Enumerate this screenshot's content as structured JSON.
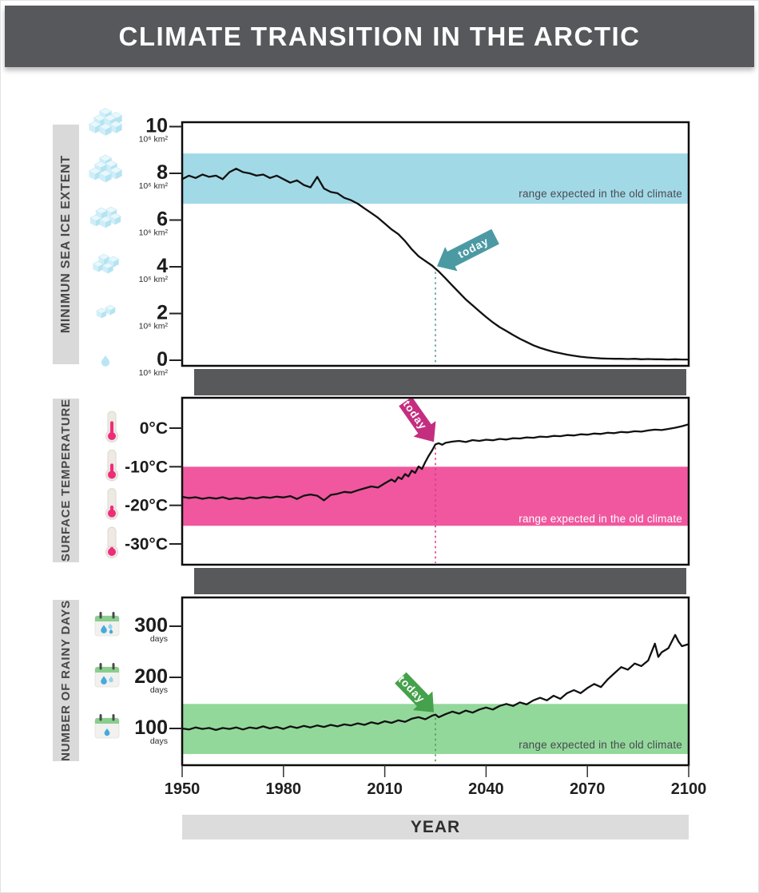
{
  "title": "CLIMATE TRANSITION IN THE ARCTIC",
  "x_axis": {
    "label": "YEAR",
    "ticks": [
      1950,
      1980,
      2010,
      2040,
      2070,
      2100
    ],
    "range": [
      1950,
      2100
    ]
  },
  "today": {
    "label": "today",
    "year": 2025
  },
  "chart_data": [
    {
      "type": "line",
      "title": "MINIMUN SEA ICE EXTENT",
      "icon": "ice-cubes",
      "y_ticks": [
        10,
        8,
        6,
        4,
        2,
        0
      ],
      "y_tick_labels": [
        "10",
        "8",
        "6",
        "4",
        "2",
        "0"
      ],
      "y_tick_unit": "10⁶ km²",
      "ylim": [
        -0.25,
        10.2
      ],
      "grid": false,
      "legend": "none",
      "band": {
        "from": 6.7,
        "to": 8.85,
        "color": "#a2d9e7",
        "label": "range expected in the old climate"
      },
      "line_color": "#111111",
      "today_value": 3.92,
      "arrow": {
        "color": "#4b9aa3",
        "dash_color": "#4b9aa3",
        "direction": "down-left",
        "angle": -27,
        "length": 62
      },
      "series": [
        [
          1950,
          7.75
        ],
        [
          1952,
          7.9
        ],
        [
          1954,
          7.8
        ],
        [
          1956,
          7.95
        ],
        [
          1958,
          7.85
        ],
        [
          1960,
          7.9
        ],
        [
          1962,
          7.75
        ],
        [
          1964,
          8.05
        ],
        [
          1966,
          8.2
        ],
        [
          1968,
          8.05
        ],
        [
          1970,
          8.0
        ],
        [
          1972,
          7.9
        ],
        [
          1974,
          7.95
        ],
        [
          1976,
          7.8
        ],
        [
          1978,
          7.9
        ],
        [
          1980,
          7.75
        ],
        [
          1982,
          7.6
        ],
        [
          1984,
          7.7
        ],
        [
          1986,
          7.5
        ],
        [
          1988,
          7.4
        ],
        [
          1990,
          7.85
        ],
        [
          1992,
          7.35
        ],
        [
          1994,
          7.2
        ],
        [
          1996,
          7.15
        ],
        [
          1998,
          6.95
        ],
        [
          2000,
          6.85
        ],
        [
          2002,
          6.7
        ],
        [
          2004,
          6.5
        ],
        [
          2006,
          6.3
        ],
        [
          2008,
          6.1
        ],
        [
          2010,
          5.85
        ],
        [
          2012,
          5.6
        ],
        [
          2014,
          5.4
        ],
        [
          2016,
          5.1
        ],
        [
          2018,
          4.75
        ],
        [
          2020,
          4.45
        ],
        [
          2022,
          4.25
        ],
        [
          2024,
          4.05
        ],
        [
          2025,
          3.92
        ],
        [
          2026,
          3.8
        ],
        [
          2028,
          3.5
        ],
        [
          2030,
          3.2
        ],
        [
          2032,
          2.9
        ],
        [
          2034,
          2.6
        ],
        [
          2036,
          2.35
        ],
        [
          2038,
          2.1
        ],
        [
          2040,
          1.85
        ],
        [
          2042,
          1.62
        ],
        [
          2044,
          1.42
        ],
        [
          2046,
          1.25
        ],
        [
          2048,
          1.08
        ],
        [
          2050,
          0.92
        ],
        [
          2052,
          0.78
        ],
        [
          2054,
          0.64
        ],
        [
          2056,
          0.53
        ],
        [
          2058,
          0.44
        ],
        [
          2060,
          0.36
        ],
        [
          2062,
          0.3
        ],
        [
          2064,
          0.24
        ],
        [
          2066,
          0.19
        ],
        [
          2068,
          0.15
        ],
        [
          2070,
          0.12
        ],
        [
          2072,
          0.1
        ],
        [
          2074,
          0.08
        ],
        [
          2076,
          0.07
        ],
        [
          2078,
          0.06
        ],
        [
          2080,
          0.06
        ],
        [
          2082,
          0.05
        ],
        [
          2084,
          0.06
        ],
        [
          2086,
          0.04
        ],
        [
          2088,
          0.05
        ],
        [
          2090,
          0.04
        ],
        [
          2092,
          0.04
        ],
        [
          2094,
          0.03
        ],
        [
          2096,
          0.04
        ],
        [
          2098,
          0.03
        ],
        [
          2100,
          0.03
        ]
      ]
    },
    {
      "type": "line",
      "title": "SURFACE TEMPERATURE",
      "icon": "thermometer",
      "y_ticks": [
        0,
        -10,
        -20,
        -30
      ],
      "y_tick_labels": [
        "0°C",
        "-10°C",
        "-20°C",
        "-30°C"
      ],
      "y_tick_unit": "",
      "ylim": [
        -36,
        8
      ],
      "grid": false,
      "legend": "none",
      "band": {
        "from": -25.3,
        "to": -10,
        "color": "#f0579f",
        "label": "range expected in the old climate"
      },
      "line_color": "#111111",
      "today_value": -4.2,
      "arrow": {
        "color": "#c42e80",
        "dash_color": "#d8378c",
        "direction": "down-right",
        "angle": 55,
        "length": 42
      },
      "series": [
        [
          1950,
          -17.8
        ],
        [
          1952,
          -18.1
        ],
        [
          1954,
          -17.9
        ],
        [
          1956,
          -18.3
        ],
        [
          1958,
          -18.0
        ],
        [
          1960,
          -18.25
        ],
        [
          1962,
          -17.9
        ],
        [
          1964,
          -18.4
        ],
        [
          1966,
          -18.1
        ],
        [
          1968,
          -18.35
        ],
        [
          1970,
          -17.95
        ],
        [
          1972,
          -18.2
        ],
        [
          1974,
          -17.85
        ],
        [
          1976,
          -18.05
        ],
        [
          1978,
          -17.75
        ],
        [
          1980,
          -17.95
        ],
        [
          1982,
          -17.6
        ],
        [
          1984,
          -18.35
        ],
        [
          1986,
          -17.5
        ],
        [
          1988,
          -17.2
        ],
        [
          1990,
          -17.5
        ],
        [
          1992,
          -18.7
        ],
        [
          1994,
          -17.3
        ],
        [
          1996,
          -17.0
        ],
        [
          1998,
          -16.5
        ],
        [
          2000,
          -16.7
        ],
        [
          2002,
          -16.1
        ],
        [
          2004,
          -15.6
        ],
        [
          2006,
          -15.1
        ],
        [
          2008,
          -15.4
        ],
        [
          2010,
          -14.3
        ],
        [
          2012,
          -13.3
        ],
        [
          2013,
          -13.9
        ],
        [
          2014,
          -12.7
        ],
        [
          2015,
          -13.2
        ],
        [
          2016,
          -11.9
        ],
        [
          2017,
          -12.5
        ],
        [
          2018,
          -11.0
        ],
        [
          2019,
          -11.6
        ],
        [
          2020,
          -9.9
        ],
        [
          2021,
          -10.6
        ],
        [
          2022,
          -8.8
        ],
        [
          2023,
          -7.2
        ],
        [
          2024,
          -5.8
        ],
        [
          2025,
          -4.2
        ],
        [
          2026,
          -3.9
        ],
        [
          2027,
          -4.3
        ],
        [
          2028,
          -3.8
        ],
        [
          2030,
          -3.5
        ],
        [
          2032,
          -3.3
        ],
        [
          2034,
          -3.6
        ],
        [
          2036,
          -3.1
        ],
        [
          2038,
          -3.3
        ],
        [
          2040,
          -3.0
        ],
        [
          2042,
          -3.15
        ],
        [
          2044,
          -2.8
        ],
        [
          2046,
          -2.95
        ],
        [
          2048,
          -2.6
        ],
        [
          2050,
          -2.7
        ],
        [
          2052,
          -2.4
        ],
        [
          2054,
          -2.5
        ],
        [
          2056,
          -2.2
        ],
        [
          2058,
          -2.3
        ],
        [
          2060,
          -2.0
        ],
        [
          2062,
          -2.1
        ],
        [
          2064,
          -1.8
        ],
        [
          2066,
          -1.9
        ],
        [
          2068,
          -1.6
        ],
        [
          2070,
          -1.7
        ],
        [
          2072,
          -1.4
        ],
        [
          2074,
          -1.5
        ],
        [
          2076,
          -1.2
        ],
        [
          2078,
          -1.3
        ],
        [
          2080,
          -1.0
        ],
        [
          2082,
          -1.1
        ],
        [
          2084,
          -0.8
        ],
        [
          2086,
          -0.9
        ],
        [
          2088,
          -0.6
        ],
        [
          2090,
          -0.4
        ],
        [
          2092,
          -0.5
        ],
        [
          2094,
          -0.2
        ],
        [
          2096,
          0.1
        ],
        [
          2098,
          0.5
        ],
        [
          2100,
          1.0
        ]
      ]
    },
    {
      "type": "line",
      "title": "NUMBER OF RAINY DAYS",
      "icon": "calendar-rain",
      "y_ticks": [
        300,
        200,
        100
      ],
      "y_tick_labels": [
        "300",
        "200",
        "100"
      ],
      "y_tick_unit": "days",
      "ylim": [
        28,
        340
      ],
      "grid": false,
      "legend": "none",
      "band": {
        "from": 50,
        "to": 148,
        "color": "#93d89b",
        "label": "range expected in the old climate"
      },
      "line_color": "#111111",
      "today_value": 127,
      "arrow": {
        "color": "#45a14b",
        "dash_color": "#45a14b",
        "direction": "down-right",
        "angle": 46,
        "length": 40
      },
      "series": [
        [
          1950,
          100
        ],
        [
          1952,
          98
        ],
        [
          1954,
          102
        ],
        [
          1956,
          99
        ],
        [
          1958,
          101
        ],
        [
          1960,
          97
        ],
        [
          1962,
          101
        ],
        [
          1964,
          99
        ],
        [
          1966,
          102
        ],
        [
          1968,
          98
        ],
        [
          1970,
          102
        ],
        [
          1972,
          100
        ],
        [
          1974,
          104
        ],
        [
          1976,
          100
        ],
        [
          1978,
          103
        ],
        [
          1980,
          99
        ],
        [
          1982,
          104
        ],
        [
          1984,
          101
        ],
        [
          1986,
          105
        ],
        [
          1988,
          102
        ],
        [
          1990,
          106
        ],
        [
          1992,
          103
        ],
        [
          1994,
          107
        ],
        [
          1996,
          104
        ],
        [
          1998,
          108
        ],
        [
          2000,
          106
        ],
        [
          2002,
          110
        ],
        [
          2004,
          107
        ],
        [
          2006,
          112
        ],
        [
          2008,
          109
        ],
        [
          2010,
          114
        ],
        [
          2012,
          111
        ],
        [
          2014,
          116
        ],
        [
          2016,
          113
        ],
        [
          2018,
          119
        ],
        [
          2020,
          122
        ],
        [
          2022,
          118
        ],
        [
          2024,
          125
        ],
        [
          2025,
          127
        ],
        [
          2026,
          122
        ],
        [
          2028,
          128
        ],
        [
          2030,
          133
        ],
        [
          2032,
          129
        ],
        [
          2034,
          135
        ],
        [
          2036,
          131
        ],
        [
          2038,
          137
        ],
        [
          2040,
          141
        ],
        [
          2042,
          137
        ],
        [
          2044,
          144
        ],
        [
          2046,
          148
        ],
        [
          2048,
          144
        ],
        [
          2050,
          151
        ],
        [
          2052,
          147
        ],
        [
          2054,
          155
        ],
        [
          2056,
          160
        ],
        [
          2058,
          155
        ],
        [
          2060,
          164
        ],
        [
          2062,
          158
        ],
        [
          2064,
          169
        ],
        [
          2066,
          175
        ],
        [
          2068,
          169
        ],
        [
          2070,
          179
        ],
        [
          2072,
          187
        ],
        [
          2074,
          181
        ],
        [
          2076,
          196
        ],
        [
          2078,
          208
        ],
        [
          2080,
          220
        ],
        [
          2082,
          215
        ],
        [
          2084,
          227
        ],
        [
          2086,
          222
        ],
        [
          2088,
          233
        ],
        [
          2090,
          266
        ],
        [
          2091,
          240
        ],
        [
          2092,
          249
        ],
        [
          2094,
          257
        ],
        [
          2096,
          283
        ],
        [
          2097,
          270
        ],
        [
          2098,
          261
        ],
        [
          2100,
          265
        ]
      ]
    }
  ]
}
